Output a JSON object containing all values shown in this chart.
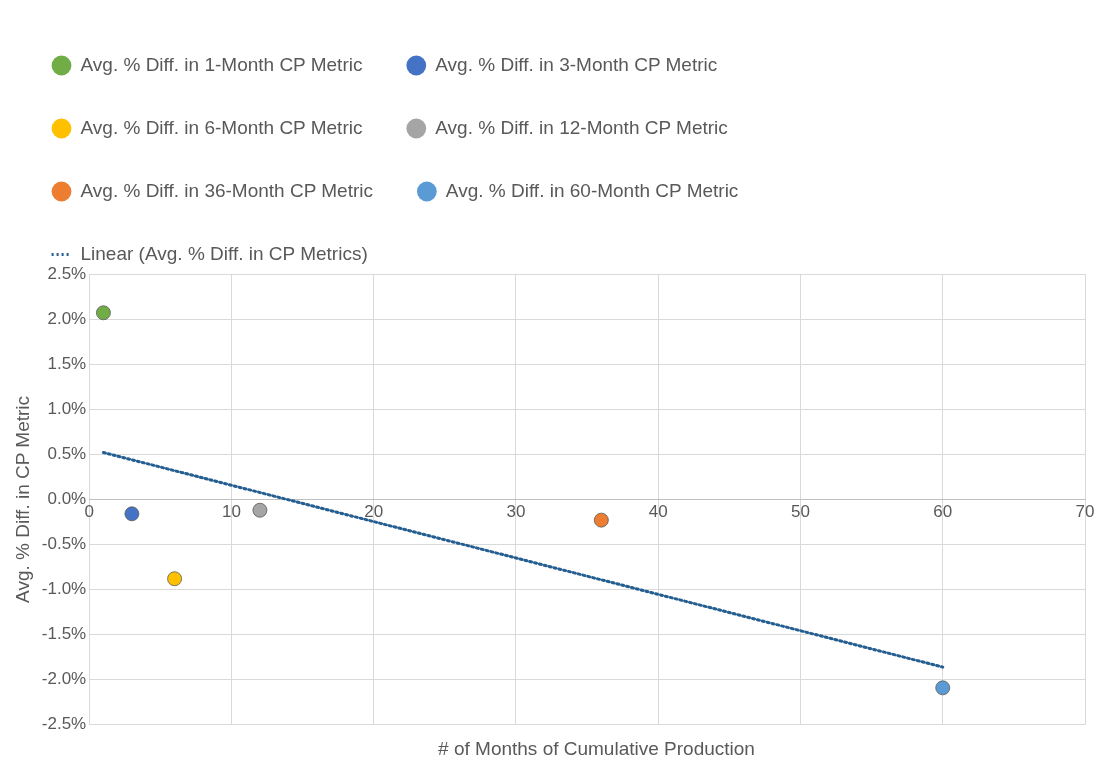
{
  "chart_data": {
    "type": "scatter",
    "xlabel": "# of Months of Cumulative Production",
    "ylabel": "Avg. % Diff. in CP Metric",
    "xlim": [
      0,
      70
    ],
    "xticks": [
      0,
      10,
      20,
      30,
      40,
      50,
      60,
      70
    ],
    "ylim": [
      -2.5,
      2.5
    ],
    "yticks": [
      {
        "value": -2.5,
        "label": "-2.5%"
      },
      {
        "value": -2,
        "label": "-2.0%"
      },
      {
        "value": -1.5,
        "label": "-1.5%"
      },
      {
        "value": -1,
        "label": "-1.0%"
      },
      {
        "value": -0.5,
        "label": "-0.5%"
      },
      {
        "value": 0,
        "label": "0.0%"
      },
      {
        "value": 0.5,
        "label": "0.5%"
      },
      {
        "value": 1,
        "label": "1.0%"
      },
      {
        "value": 1.5,
        "label": "1.5%"
      },
      {
        "value": 2,
        "label": "2.0%"
      },
      {
        "value": 2.5,
        "label": "2.5%"
      }
    ],
    "grid": true,
    "legend": "top",
    "marker": "circle",
    "series": [
      {
        "name": "Avg. % Diff. in 1-Month CP Metric",
        "color": "#70ad47",
        "x": [
          1
        ],
        "values": [
          2.07
        ]
      },
      {
        "name": "Avg. % Diff. in 3-Month CP Metric",
        "color": "#4472c4",
        "x": [
          3
        ],
        "values": [
          -0.16
        ]
      },
      {
        "name": "Avg. % Diff. in 6-Month CP Metric",
        "color": "#ffc000",
        "x": [
          6
        ],
        "values": [
          -0.88
        ]
      },
      {
        "name": "Avg. % Diff. in 12-Month CP Metric",
        "color": "#a5a5a5",
        "x": [
          12
        ],
        "values": [
          -0.12
        ]
      },
      {
        "name": "Avg. % Diff. in 36-Month CP Metric",
        "color": "#ed7d31",
        "x": [
          36
        ],
        "values": [
          -0.23
        ]
      },
      {
        "name": "Avg. % Diff. in 60-Month CP Metric",
        "color": "#5b9bd5",
        "x": [
          60
        ],
        "values": [
          -2.09
        ]
      },
      {
        "name": "Linear (Avg. % Diff. in CP Metrics)",
        "type": "line",
        "color": "#255e91",
        "line_style": "dotted",
        "marker": "none",
        "x": [
          1,
          60
        ],
        "values": [
          0.52,
          -1.86
        ]
      }
    ]
  }
}
